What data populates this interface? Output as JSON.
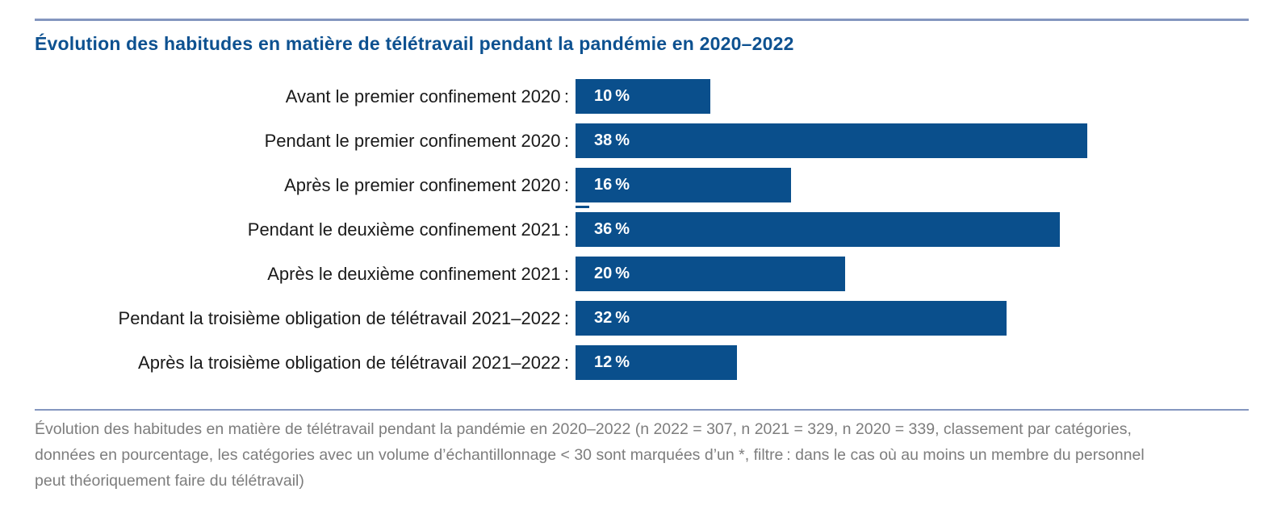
{
  "colors": {
    "bar": "#0a4f8c",
    "title": "#0d5190",
    "rule": "#8496bf",
    "footer_text": "#7d7d7d",
    "value_label": "#ffffff",
    "category_label": "#1a1a1a"
  },
  "title": {
    "text": "Évolution des habitudes en matière de télétravail pendant la pandémie en 2020–2022"
  },
  "chart_data": {
    "type": "bar",
    "orientation": "horizontal",
    "title": "Évolution des habitudes en matière de télétravail pendant la pandémie en 2020–2022",
    "categories": [
      "Avant le premier confinement 2020 :",
      "Pendant le premier confinement 2020 :",
      "Après le premier confinement 2020 :",
      "Pendant le deuxième confinement 2021 :",
      "Après le deuxième confinement 2021 :",
      "Pendant la troisième obligation de télétravail 2021–2022 :",
      "Après la troisième obligation de télétravail 2021–2022 :"
    ],
    "values": [
      10,
      38,
      16,
      36,
      20,
      32,
      12
    ],
    "unit": "%",
    "bar_color": "#0a4f8c",
    "layout": {
      "scale_max": 50,
      "grid": false,
      "legend": false,
      "value_labels_inside_bar": true
    },
    "rows": [
      {
        "label": "Avant le premier confinement 2020 :",
        "value": 10,
        "display": "10 %"
      },
      {
        "label": "Pendant le premier confinement 2020 :",
        "value": 38,
        "display": "38 %"
      },
      {
        "label": "Après le premier confinement 2020 :",
        "value": 16,
        "display": "16 %"
      },
      {
        "label": "Pendant le deuxième confinement 2021 :",
        "value": 36,
        "display": "36 %"
      },
      {
        "label": "Après le deuxième confinement 2021 :",
        "value": 20,
        "display": "20 %"
      },
      {
        "label": "Pendant la troisième obligation de télétravail 2021–2022 :",
        "value": 32,
        "display": "32 %"
      },
      {
        "label": "Après la troisième obligation de télétravail 2021–2022 :",
        "value": 12,
        "display": "12 %"
      }
    ]
  },
  "footer": {
    "lines": [
      "Évolution des habitudes en matière de télétravail pendant la pandémie en 2020–2022 (n 2022 = 307, n 2021 = 329, n 2020 = 339, classement par catégories,",
      "données en pourcentage, les catégories avec un volume d’échantillonnage < 30 sont marquées d’un *, filtre : dans le cas où au moins un membre du personnel",
      "peut théoriquement faire du télétravail)"
    ]
  }
}
